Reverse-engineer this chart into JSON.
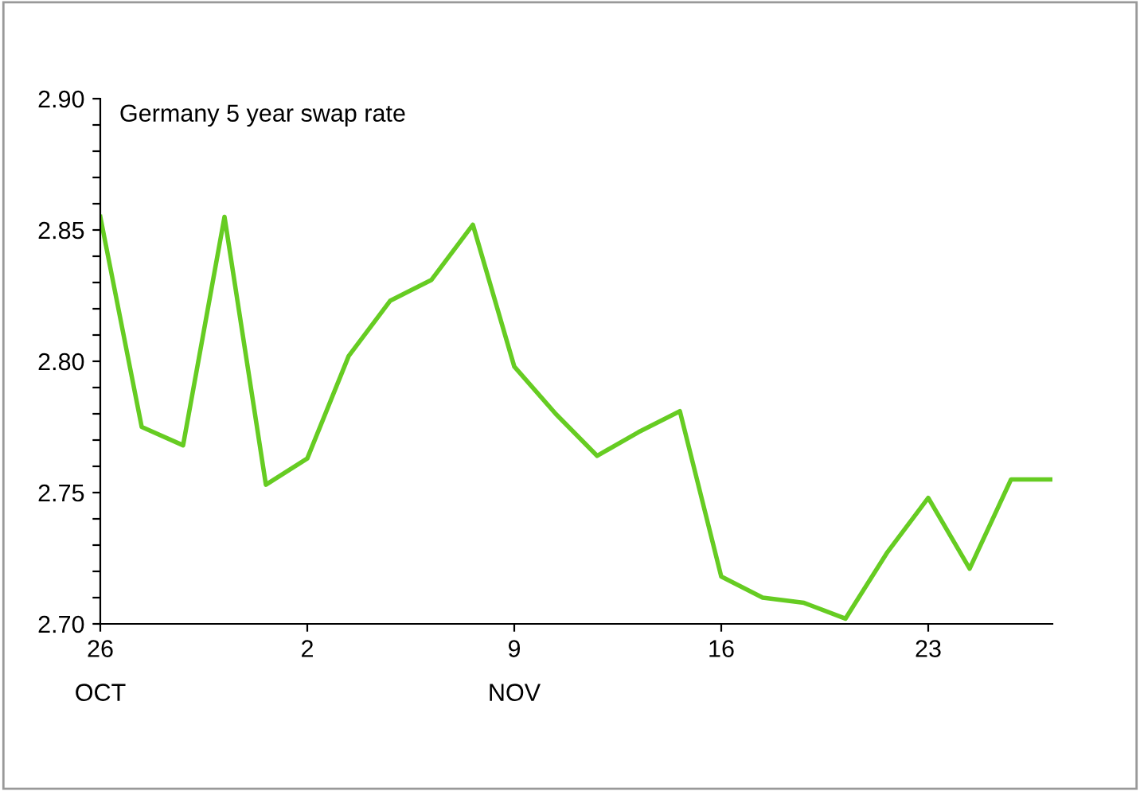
{
  "chart_data": {
    "type": "line",
    "title": "Germany 5 year swap rate",
    "categories": [
      "26\nOCT",
      null,
      null,
      null,
      null,
      "2",
      null,
      null,
      null,
      null,
      "9\nNOV",
      null,
      null,
      null,
      null,
      "16",
      null,
      null,
      null,
      null,
      "23",
      null,
      null,
      null
    ],
    "series": [
      {
        "color": "#66cc22",
        "values": [
          2.855,
          2.775,
          2.768,
          2.855,
          2.753,
          2.763,
          2.802,
          2.823,
          2.831,
          2.852,
          2.798,
          2.78,
          2.764,
          2.773,
          2.781,
          2.718,
          2.71,
          2.708,
          2.702,
          2.727,
          2.748,
          2.721,
          2.755,
          2.755
        ]
      }
    ],
    "ylim": [
      2.7,
      2.9
    ],
    "yticks": [
      {
        "value": 2.7,
        "label": "2.70"
      },
      {
        "value": 2.71,
        "label": null
      },
      {
        "value": 2.72,
        "label": null
      },
      {
        "value": 2.73,
        "label": null
      },
      {
        "value": 2.74,
        "label": null
      },
      {
        "value": 2.75,
        "label": "2.75"
      },
      {
        "value": 2.76,
        "label": null
      },
      {
        "value": 2.77,
        "label": null
      },
      {
        "value": 2.78,
        "label": null
      },
      {
        "value": 2.79,
        "label": null
      },
      {
        "value": 2.8,
        "label": "2.80"
      },
      {
        "value": 2.81,
        "label": null
      },
      {
        "value": 2.82,
        "label": null
      },
      {
        "value": 2.83,
        "label": null
      },
      {
        "value": 2.84,
        "label": null
      },
      {
        "value": 2.85,
        "label": "2.85"
      },
      {
        "value": 2.86,
        "label": null
      },
      {
        "value": 2.87,
        "label": null
      },
      {
        "value": 2.88,
        "label": null
      },
      {
        "value": 2.89,
        "label": null
      },
      {
        "value": 2.9,
        "label": "2.90"
      }
    ],
    "grid": false,
    "legend": false,
    "marker": "none",
    "line_style": "solid"
  }
}
